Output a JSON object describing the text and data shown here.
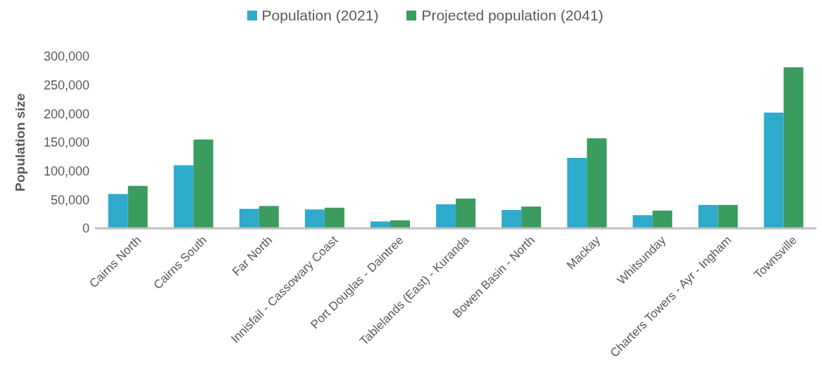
{
  "chart_data": {
    "type": "bar",
    "ylabel": "Population size",
    "categories": [
      "Cairns North",
      "Cairns South",
      "Far North",
      "Innisfail - Cassowary Coast",
      "Port Douglas - Daintree",
      "Tablelands (East) - Kuranda",
      "Bowen Basin - North",
      "Mackay",
      "Whitsunday",
      "Charters Towers - Ayr - Ingham",
      "Townsville"
    ],
    "series": [
      {
        "name": "Population (2021)",
        "color": "#2eaacb",
        "values": [
          60000,
          110000,
          34000,
          33000,
          12000,
          42000,
          32000,
          123000,
          23000,
          41000,
          202000
        ]
      },
      {
        "name": "Projected population (2041)",
        "color": "#3a9c5e",
        "values": [
          74000,
          155000,
          39000,
          36000,
          14000,
          52000,
          38000,
          157000,
          31000,
          41000,
          281000
        ]
      }
    ],
    "ylim": [
      0,
      300000
    ],
    "yticks": [
      {
        "value": 0,
        "label": "0"
      },
      {
        "value": 50000,
        "label": "50,000"
      },
      {
        "value": 100000,
        "label": "100,000"
      },
      {
        "value": 150000,
        "label": "150,000"
      },
      {
        "value": 200000,
        "label": "200,000"
      },
      {
        "value": 250000,
        "label": "250,000"
      },
      {
        "value": 300000,
        "label": "300,000"
      }
    ],
    "legend": "top"
  }
}
